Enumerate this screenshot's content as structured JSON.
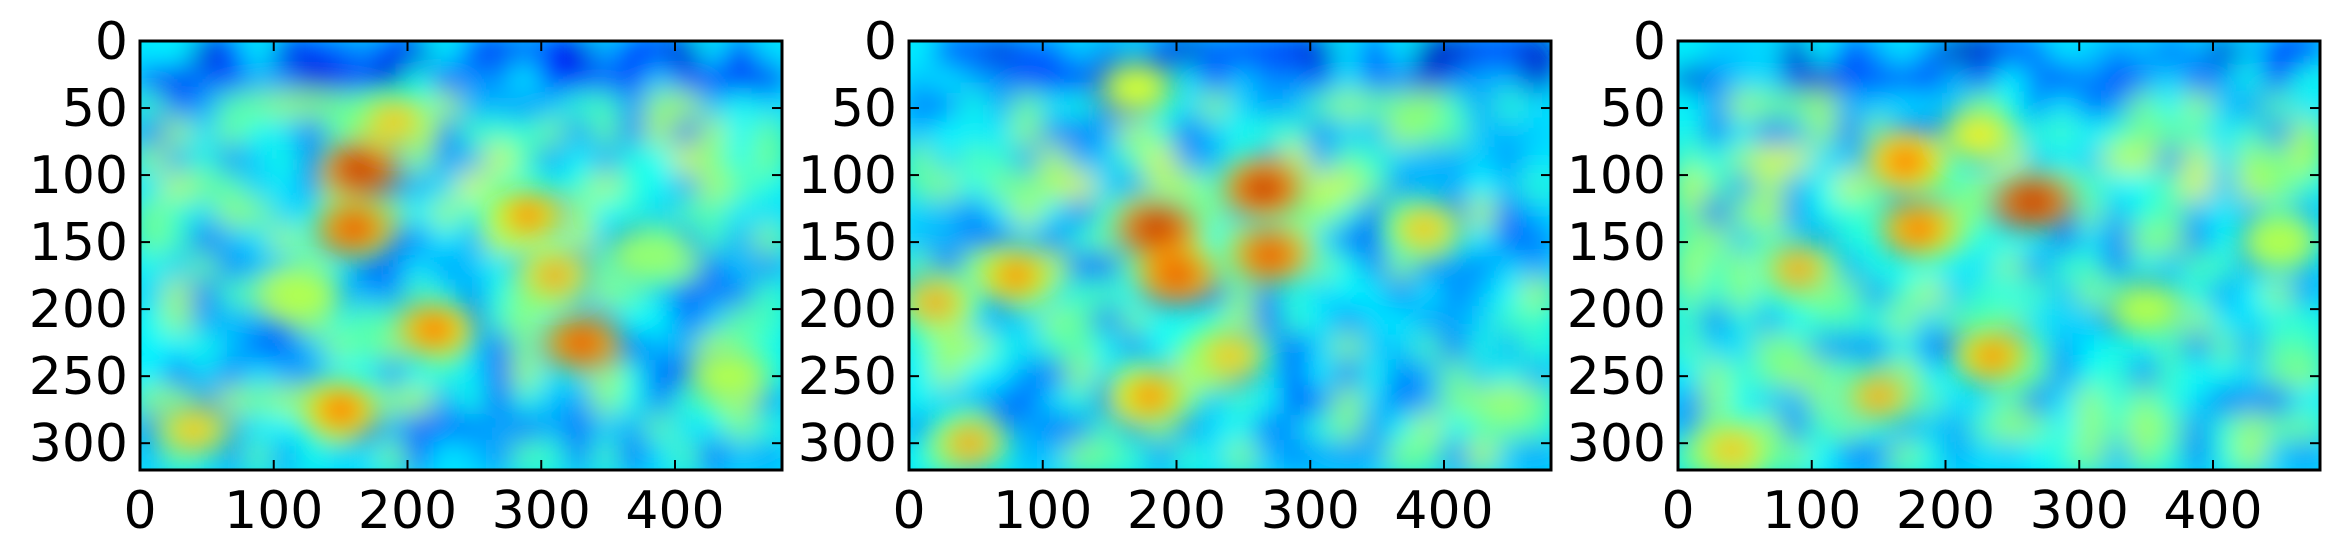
{
  "chart_data": [
    {
      "type": "heatmap",
      "title": "",
      "xlabel": "",
      "ylabel": "",
      "xlim": [
        0,
        480
      ],
      "ylim": [
        320,
        0
      ],
      "x_ticks": [
        0,
        100,
        200,
        300,
        400
      ],
      "y_ticks": [
        0,
        50,
        100,
        150,
        200,
        250,
        300
      ],
      "colormap": "jet",
      "grid": false,
      "legend": "none",
      "hotspots": [
        {
          "x": 165,
          "y": 95,
          "v": 0.95
        },
        {
          "x": 160,
          "y": 140,
          "v": 0.9
        },
        {
          "x": 190,
          "y": 60,
          "v": 0.7
        },
        {
          "x": 220,
          "y": 215,
          "v": 0.85
        },
        {
          "x": 290,
          "y": 130,
          "v": 0.8
        },
        {
          "x": 310,
          "y": 175,
          "v": 0.75
        },
        {
          "x": 330,
          "y": 225,
          "v": 0.9
        },
        {
          "x": 150,
          "y": 275,
          "v": 0.85
        },
        {
          "x": 40,
          "y": 290,
          "v": 0.7
        },
        {
          "x": 440,
          "y": 250,
          "v": 0.55
        },
        {
          "x": 120,
          "y": 190,
          "v": 0.55
        },
        {
          "x": 380,
          "y": 160,
          "v": 0.5
        }
      ]
    },
    {
      "type": "heatmap",
      "title": "",
      "xlabel": "",
      "ylabel": "",
      "xlim": [
        0,
        480
      ],
      "ylim": [
        320,
        0
      ],
      "x_ticks": [
        0,
        100,
        200,
        300,
        400
      ],
      "y_ticks": [
        0,
        50,
        100,
        150,
        200,
        250,
        300
      ],
      "colormap": "jet",
      "grid": false,
      "legend": "none",
      "hotspots": [
        {
          "x": 185,
          "y": 140,
          "v": 0.95
        },
        {
          "x": 200,
          "y": 175,
          "v": 0.9
        },
        {
          "x": 265,
          "y": 110,
          "v": 0.95
        },
        {
          "x": 270,
          "y": 160,
          "v": 0.9
        },
        {
          "x": 80,
          "y": 175,
          "v": 0.8
        },
        {
          "x": 20,
          "y": 195,
          "v": 0.75
        },
        {
          "x": 180,
          "y": 265,
          "v": 0.8
        },
        {
          "x": 45,
          "y": 300,
          "v": 0.75
        },
        {
          "x": 385,
          "y": 140,
          "v": 0.7
        },
        {
          "x": 240,
          "y": 235,
          "v": 0.7
        },
        {
          "x": 170,
          "y": 35,
          "v": 0.6
        }
      ]
    },
    {
      "type": "heatmap",
      "title": "",
      "xlabel": "",
      "ylabel": "",
      "xlim": [
        0,
        480
      ],
      "ylim": [
        320,
        0
      ],
      "x_ticks": [
        0,
        100,
        200,
        300,
        400
      ],
      "y_ticks": [
        0,
        50,
        100,
        150,
        200,
        250,
        300
      ],
      "colormap": "jet",
      "grid": false,
      "legend": "none",
      "hotspots": [
        {
          "x": 170,
          "y": 90,
          "v": 0.85
        },
        {
          "x": 180,
          "y": 140,
          "v": 0.85
        },
        {
          "x": 265,
          "y": 120,
          "v": 0.95
        },
        {
          "x": 225,
          "y": 70,
          "v": 0.65
        },
        {
          "x": 90,
          "y": 170,
          "v": 0.75
        },
        {
          "x": 150,
          "y": 265,
          "v": 0.75
        },
        {
          "x": 40,
          "y": 305,
          "v": 0.7
        },
        {
          "x": 235,
          "y": 235,
          "v": 0.8
        },
        {
          "x": 350,
          "y": 200,
          "v": 0.55
        },
        {
          "x": 450,
          "y": 150,
          "v": 0.55
        }
      ]
    }
  ]
}
